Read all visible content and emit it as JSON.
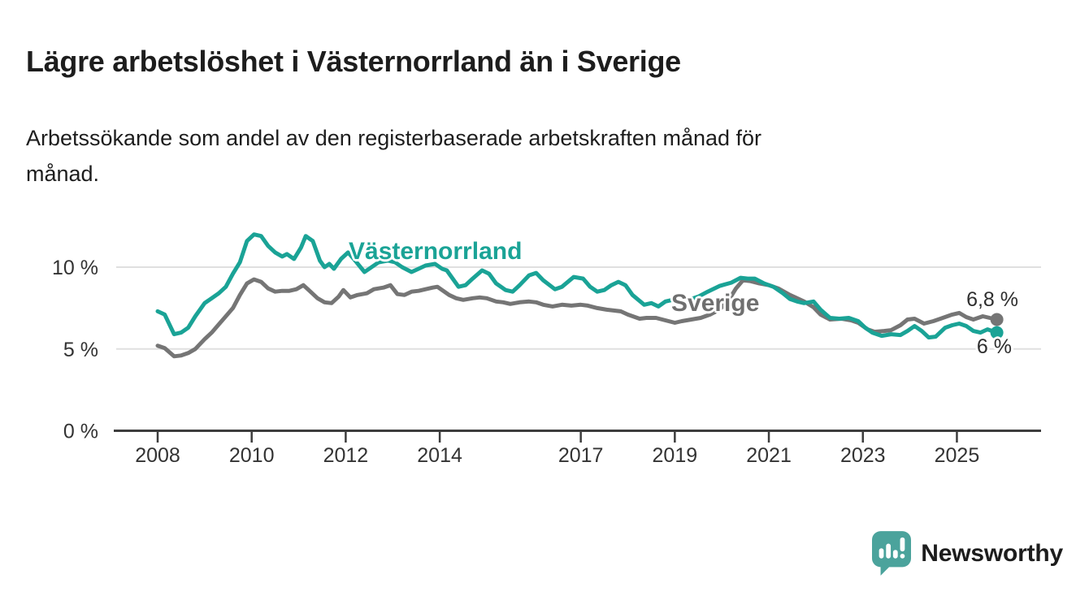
{
  "header": {
    "title": "Lägre arbetslöshet i Västernorrland än i Sverige",
    "subtitle": "Arbetssökande som andel av den registerbaserade arbetskraften månad för månad."
  },
  "footer": {
    "brand": "Newsworthy",
    "brand_color": "#4ba39c",
    "logo_icon": "newsworthy-speech-bubble-bar-chart"
  },
  "chart_data": {
    "type": "line",
    "title": "Lägre arbetslöshet i Västernorrland än i Sverige",
    "subtitle": "Arbetssökande som andel av den registerbaserade arbetskraften månad för månad.",
    "grid": true,
    "legend_position": "inline-labels-on-lines",
    "x_axis": {
      "range": [
        2008,
        2025.85
      ],
      "ticks": [
        {
          "value": 2008,
          "label": "2008"
        },
        {
          "value": 2010,
          "label": "2010"
        },
        {
          "value": 2012,
          "label": "2012"
        },
        {
          "value": 2014,
          "label": "2014"
        },
        {
          "value": 2017,
          "label": "2017"
        },
        {
          "value": 2019,
          "label": "2019"
        },
        {
          "value": 2021,
          "label": "2021"
        },
        {
          "value": 2023,
          "label": "2023"
        },
        {
          "value": 2025,
          "label": "2025"
        }
      ]
    },
    "y_axis": {
      "unit": "%",
      "range": [
        0,
        12.5
      ],
      "ticks": [
        {
          "value": 0,
          "label": "0 %"
        },
        {
          "value": 5,
          "label": "5 %"
        },
        {
          "value": 10,
          "label": "10 %"
        }
      ]
    },
    "series": [
      {
        "name": "Sverige",
        "color": "#757575",
        "end_label": "6,8 %",
        "end_value": 6.8,
        "points": [
          [
            2008.0,
            5.2
          ],
          [
            2008.15,
            5.05
          ],
          [
            2008.35,
            4.55
          ],
          [
            2008.5,
            4.6
          ],
          [
            2008.65,
            4.75
          ],
          [
            2008.8,
            5.0
          ],
          [
            2009.0,
            5.6
          ],
          [
            2009.15,
            6.0
          ],
          [
            2009.3,
            6.5
          ],
          [
            2009.45,
            7.0
          ],
          [
            2009.6,
            7.5
          ],
          [
            2009.75,
            8.3
          ],
          [
            2009.9,
            9.0
          ],
          [
            2010.05,
            9.25
          ],
          [
            2010.2,
            9.1
          ],
          [
            2010.35,
            8.7
          ],
          [
            2010.5,
            8.5
          ],
          [
            2010.65,
            8.55
          ],
          [
            2010.8,
            8.55
          ],
          [
            2010.95,
            8.65
          ],
          [
            2011.1,
            8.9
          ],
          [
            2011.25,
            8.5
          ],
          [
            2011.4,
            8.1
          ],
          [
            2011.55,
            7.85
          ],
          [
            2011.7,
            7.8
          ],
          [
            2011.85,
            8.2
          ],
          [
            2011.95,
            8.6
          ],
          [
            2012.1,
            8.15
          ],
          [
            2012.25,
            8.3
          ],
          [
            2012.45,
            8.4
          ],
          [
            2012.6,
            8.65
          ],
          [
            2012.8,
            8.75
          ],
          [
            2012.95,
            8.9
          ],
          [
            2013.1,
            8.35
          ],
          [
            2013.25,
            8.3
          ],
          [
            2013.4,
            8.5
          ],
          [
            2013.55,
            8.55
          ],
          [
            2013.7,
            8.65
          ],
          [
            2013.85,
            8.75
          ],
          [
            2013.95,
            8.8
          ],
          [
            2014.2,
            8.3
          ],
          [
            2014.35,
            8.1
          ],
          [
            2014.5,
            8.0
          ],
          [
            2014.7,
            8.1
          ],
          [
            2014.85,
            8.15
          ],
          [
            2015.0,
            8.1
          ],
          [
            2015.2,
            7.9
          ],
          [
            2015.35,
            7.85
          ],
          [
            2015.5,
            7.75
          ],
          [
            2015.7,
            7.85
          ],
          [
            2015.9,
            7.9
          ],
          [
            2016.05,
            7.85
          ],
          [
            2016.2,
            7.7
          ],
          [
            2016.4,
            7.6
          ],
          [
            2016.6,
            7.7
          ],
          [
            2016.8,
            7.65
          ],
          [
            2017.0,
            7.7
          ],
          [
            2017.15,
            7.65
          ],
          [
            2017.35,
            7.5
          ],
          [
            2017.55,
            7.4
          ],
          [
            2017.7,
            7.35
          ],
          [
            2017.85,
            7.3
          ],
          [
            2018.0,
            7.1
          ],
          [
            2018.25,
            6.85
          ],
          [
            2018.4,
            6.9
          ],
          [
            2018.6,
            6.9
          ],
          [
            2018.8,
            6.75
          ],
          [
            2019.0,
            6.6
          ],
          [
            2019.15,
            6.7
          ],
          [
            2019.35,
            6.8
          ],
          [
            2019.55,
            6.9
          ],
          [
            2019.75,
            7.1
          ],
          [
            2019.95,
            7.4
          ],
          [
            2020.15,
            8.0
          ],
          [
            2020.3,
            8.7
          ],
          [
            2020.45,
            9.2
          ],
          [
            2020.6,
            9.15
          ],
          [
            2020.8,
            9.0
          ],
          [
            2021.0,
            8.9
          ],
          [
            2021.2,
            8.7
          ],
          [
            2021.45,
            8.3
          ],
          [
            2021.6,
            8.1
          ],
          [
            2021.75,
            7.9
          ],
          [
            2021.95,
            7.55
          ],
          [
            2022.1,
            7.1
          ],
          [
            2022.3,
            6.8
          ],
          [
            2022.55,
            6.85
          ],
          [
            2022.75,
            6.75
          ],
          [
            2022.9,
            6.6
          ],
          [
            2023.1,
            6.2
          ],
          [
            2023.25,
            6.05
          ],
          [
            2023.45,
            6.1
          ],
          [
            2023.6,
            6.15
          ],
          [
            2023.8,
            6.45
          ],
          [
            2023.95,
            6.8
          ],
          [
            2024.1,
            6.85
          ],
          [
            2024.3,
            6.55
          ],
          [
            2024.5,
            6.7
          ],
          [
            2024.65,
            6.85
          ],
          [
            2024.9,
            7.1
          ],
          [
            2025.05,
            7.2
          ],
          [
            2025.2,
            6.95
          ],
          [
            2025.35,
            6.8
          ],
          [
            2025.55,
            7.0
          ],
          [
            2025.7,
            6.9
          ],
          [
            2025.85,
            6.8
          ]
        ]
      },
      {
        "name": "Västernorrland",
        "color": "#1aa396",
        "end_label": "6 %",
        "end_value": 6.0,
        "points": [
          [
            2008.0,
            7.3
          ],
          [
            2008.15,
            7.1
          ],
          [
            2008.35,
            5.9
          ],
          [
            2008.5,
            6.0
          ],
          [
            2008.65,
            6.3
          ],
          [
            2008.8,
            7.0
          ],
          [
            2009.0,
            7.8
          ],
          [
            2009.15,
            8.1
          ],
          [
            2009.3,
            8.4
          ],
          [
            2009.45,
            8.8
          ],
          [
            2009.6,
            9.6
          ],
          [
            2009.75,
            10.3
          ],
          [
            2009.9,
            11.6
          ],
          [
            2010.05,
            12.0
          ],
          [
            2010.2,
            11.9
          ],
          [
            2010.35,
            11.3
          ],
          [
            2010.5,
            10.9
          ],
          [
            2010.65,
            10.65
          ],
          [
            2010.75,
            10.8
          ],
          [
            2010.9,
            10.5
          ],
          [
            2011.05,
            11.2
          ],
          [
            2011.15,
            11.9
          ],
          [
            2011.3,
            11.6
          ],
          [
            2011.45,
            10.4
          ],
          [
            2011.55,
            10.0
          ],
          [
            2011.65,
            10.2
          ],
          [
            2011.75,
            9.9
          ],
          [
            2011.9,
            10.5
          ],
          [
            2012.05,
            10.9
          ],
          [
            2012.2,
            10.4
          ],
          [
            2012.4,
            9.7
          ],
          [
            2012.55,
            10.0
          ],
          [
            2012.7,
            10.3
          ],
          [
            2012.9,
            10.4
          ],
          [
            2013.05,
            10.3
          ],
          [
            2013.2,
            10.0
          ],
          [
            2013.4,
            9.7
          ],
          [
            2013.55,
            9.9
          ],
          [
            2013.7,
            10.1
          ],
          [
            2013.9,
            10.2
          ],
          [
            2014.05,
            9.9
          ],
          [
            2014.15,
            9.8
          ],
          [
            2014.4,
            8.8
          ],
          [
            2014.55,
            8.9
          ],
          [
            2014.7,
            9.3
          ],
          [
            2014.9,
            9.8
          ],
          [
            2015.05,
            9.6
          ],
          [
            2015.2,
            9.0
          ],
          [
            2015.4,
            8.6
          ],
          [
            2015.55,
            8.5
          ],
          [
            2015.7,
            8.9
          ],
          [
            2015.9,
            9.5
          ],
          [
            2016.05,
            9.65
          ],
          [
            2016.2,
            9.2
          ],
          [
            2016.45,
            8.65
          ],
          [
            2016.6,
            8.8
          ],
          [
            2016.85,
            9.4
          ],
          [
            2017.05,
            9.3
          ],
          [
            2017.2,
            8.8
          ],
          [
            2017.35,
            8.5
          ],
          [
            2017.5,
            8.6
          ],
          [
            2017.65,
            8.9
          ],
          [
            2017.8,
            9.1
          ],
          [
            2017.95,
            8.9
          ],
          [
            2018.1,
            8.3
          ],
          [
            2018.35,
            7.7
          ],
          [
            2018.5,
            7.8
          ],
          [
            2018.65,
            7.6
          ],
          [
            2018.8,
            7.9
          ],
          [
            2018.95,
            8.0
          ],
          [
            2019.1,
            7.8
          ],
          [
            2019.3,
            8.0
          ],
          [
            2019.5,
            8.2
          ],
          [
            2019.7,
            8.5
          ],
          [
            2019.95,
            8.85
          ],
          [
            2020.2,
            9.05
          ],
          [
            2020.4,
            9.35
          ],
          [
            2020.55,
            9.3
          ],
          [
            2020.7,
            9.3
          ],
          [
            2020.9,
            9.0
          ],
          [
            2021.1,
            8.8
          ],
          [
            2021.3,
            8.4
          ],
          [
            2021.45,
            8.05
          ],
          [
            2021.6,
            7.9
          ],
          [
            2021.75,
            7.8
          ],
          [
            2021.95,
            7.9
          ],
          [
            2022.1,
            7.4
          ],
          [
            2022.3,
            6.9
          ],
          [
            2022.5,
            6.85
          ],
          [
            2022.7,
            6.9
          ],
          [
            2022.9,
            6.7
          ],
          [
            2023.05,
            6.3
          ],
          [
            2023.2,
            6.0
          ],
          [
            2023.4,
            5.8
          ],
          [
            2023.6,
            5.9
          ],
          [
            2023.8,
            5.85
          ],
          [
            2023.95,
            6.1
          ],
          [
            2024.1,
            6.4
          ],
          [
            2024.25,
            6.1
          ],
          [
            2024.4,
            5.7
          ],
          [
            2024.55,
            5.75
          ],
          [
            2024.75,
            6.3
          ],
          [
            2024.9,
            6.45
          ],
          [
            2025.05,
            6.55
          ],
          [
            2025.2,
            6.4
          ],
          [
            2025.35,
            6.1
          ],
          [
            2025.5,
            6.0
          ],
          [
            2025.65,
            6.2
          ],
          [
            2025.85,
            6.0
          ]
        ]
      }
    ]
  }
}
